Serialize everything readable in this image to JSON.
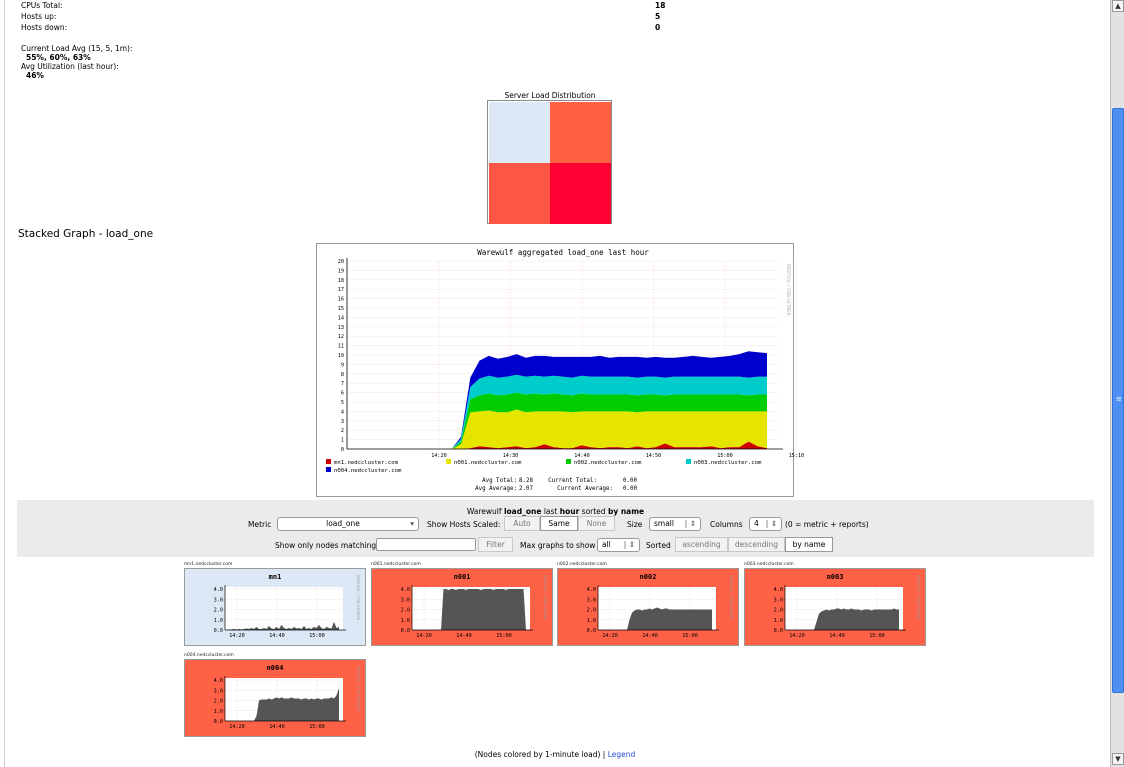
{
  "summary": {
    "cpus_total_label": "CPUs Total:",
    "cpus_total_value": "18",
    "hosts_up_label": "Hosts up:",
    "hosts_up_value": "5",
    "hosts_down_label": "Hosts down:",
    "hosts_down_value": "0",
    "load_avg_label": "Current Load Avg (15, 5, 1m):",
    "load_avg_value": "55%, 60%, 63%",
    "avg_util_label": "Avg Utilization (last hour):",
    "avg_util_value": "46%"
  },
  "distribution": {
    "title": "Server Load Distribution",
    "cells": [
      "#dce8f5",
      "#ff6040",
      "#ff5545",
      "#ff0033"
    ]
  },
  "stacked": {
    "heading": "Stacked Graph - load_one",
    "chart_data": {
      "type": "area",
      "title": "Warewulf aggregated load_one last hour",
      "x_ticks": [
        "14:20",
        "14:30",
        "14:40",
        "14:50",
        "15:00",
        "15:10"
      ],
      "ylim": [
        0,
        20
      ],
      "y_ticks": [
        0,
        1,
        2,
        3,
        4,
        5,
        6,
        7,
        8,
        9,
        10,
        11,
        12,
        13,
        14,
        15,
        16,
        17,
        18,
        19,
        20
      ],
      "series": [
        {
          "name": "mn1.nedccluster.com",
          "color": "#cc0000",
          "values": [
            0,
            0,
            0,
            0,
            0,
            0,
            0,
            0,
            0,
            0,
            0,
            0,
            0.1,
            0.3,
            0.2,
            0.1,
            0.2,
            0.3,
            0.1,
            0.2,
            0.5,
            0.2,
            0.1,
            0.1,
            0.4,
            0.2,
            0.1,
            0.2,
            0.2,
            0.1,
            0.3,
            0.1,
            0.2,
            0.6,
            0.2,
            0.2,
            0.2,
            0.2,
            0.3,
            0.1,
            0.2,
            0.2,
            0.8,
            0.3,
            0.1
          ]
        },
        {
          "name": "n001.nedccluster.com",
          "color": "#e5e500",
          "values": [
            0,
            0,
            0,
            0,
            0,
            0,
            0,
            0,
            0,
            0,
            0,
            0.5,
            3.8,
            3.7,
            3.9,
            3.8,
            3.7,
            3.9,
            3.8,
            3.8,
            3.5,
            3.8,
            3.9,
            3.8,
            3.6,
            3.8,
            3.9,
            3.8,
            3.8,
            3.9,
            3.6,
            3.9,
            3.8,
            3.4,
            3.8,
            3.8,
            3.8,
            3.8,
            3.7,
            3.9,
            3.8,
            3.8,
            3.2,
            3.7,
            3.9
          ]
        },
        {
          "name": "n002.nedccluster.com",
          "color": "#00cc00",
          "values": [
            0,
            0,
            0,
            0,
            0,
            0,
            0,
            0,
            0,
            0,
            0,
            0.3,
            1.4,
            1.7,
            1.8,
            1.8,
            1.9,
            1.8,
            1.9,
            1.9,
            1.8,
            1.9,
            1.8,
            1.8,
            1.9,
            1.8,
            1.8,
            1.8,
            1.8,
            1.8,
            1.8,
            1.8,
            1.8,
            1.7,
            1.8,
            1.8,
            1.8,
            1.8,
            1.8,
            1.8,
            1.8,
            1.8,
            1.7,
            1.8,
            1.8
          ]
        },
        {
          "name": "n003.nedccluster.com",
          "color": "#00cccc",
          "values": [
            0,
            0,
            0,
            0,
            0,
            0,
            0,
            0,
            0,
            0,
            0,
            0.3,
            1.3,
            1.8,
            1.9,
            1.9,
            1.9,
            1.9,
            1.9,
            1.9,
            1.9,
            1.9,
            1.9,
            1.9,
            1.9,
            1.9,
            1.9,
            1.9,
            1.9,
            1.9,
            1.9,
            1.9,
            1.9,
            1.9,
            1.9,
            1.9,
            1.9,
            1.9,
            1.9,
            1.9,
            1.9,
            1.9,
            1.9,
            1.9,
            1.9
          ]
        },
        {
          "name": "n004.nedccluster.com",
          "color": "#0000cc",
          "values": [
            0,
            0,
            0,
            0,
            0,
            0,
            0,
            0,
            0,
            0,
            0,
            0.2,
            1.0,
            1.9,
            2.1,
            2.0,
            2.1,
            2.2,
            2.0,
            2.1,
            2.2,
            2.0,
            2.1,
            2.2,
            2.0,
            2.1,
            2.2,
            2.0,
            2.1,
            2.1,
            2.2,
            2.0,
            2.1,
            2.1,
            2.0,
            2.1,
            2.2,
            2.1,
            2.0,
            2.1,
            2.2,
            2.4,
            2.8,
            2.6,
            2.5
          ]
        }
      ],
      "stats": {
        "avg_total_label": "Avg Total:",
        "avg_total": "8.28",
        "current_total_label": "Current Total:",
        "current_total": "0.00",
        "avg_average_label": "Avg Average:",
        "avg_average": "2.07",
        "current_average_label": "Current Average:",
        "current_average": "0.00"
      },
      "watermark": "RRDTOOL / TOBI OETIKER"
    }
  },
  "controls": {
    "caption_pre": "Warewulf",
    "caption_metric": "load_one",
    "caption_mid": "last",
    "caption_range": "hour",
    "caption_sorted": "sorted",
    "caption_by": "by name",
    "metric_label": "Metric",
    "metric_value": "load_one",
    "scaled_label": "Show Hosts Scaled:",
    "scaled_options": [
      "Auto",
      "Same",
      "None"
    ],
    "size_label": "Size",
    "size_value": "small",
    "columns_label": "Columns",
    "columns_value": "4",
    "columns_note": "(0 = metric + reports)",
    "filter_label": "Show only nodes matching",
    "filter_value": "",
    "filter_button": "Filter",
    "max_label": "Max graphs to show",
    "max_value": "all",
    "sorted_label": "Sorted",
    "sort_options": [
      "ascending",
      "descending",
      "by name"
    ]
  },
  "hosts": [
    {
      "fqdn": "mn1.nedccluster.com",
      "name": "mn1",
      "bg": "#dce8f5",
      "values": [
        0.05,
        0.05,
        0.1,
        0.05,
        0.1,
        0.05,
        0.1,
        0.15,
        0.1,
        0.2,
        0.1,
        0.3,
        0.1,
        0.1,
        0.2,
        0.1,
        0.4,
        0.15,
        0.1,
        0.3,
        0.1,
        0.5,
        0.2,
        0.1,
        0.2,
        0.1,
        0.3,
        0.15,
        0.2,
        0.1,
        0.4,
        0.1,
        0.2,
        0.1,
        0.3,
        0.2,
        0.5,
        0.2,
        0.1,
        0.3,
        0.2,
        0.15,
        0.8,
        0.2,
        0.3
      ]
    },
    {
      "fqdn": "n001.nedccluster.com",
      "name": "n001",
      "bg": "#ff6147",
      "values": [
        0,
        0,
        0,
        0,
        0,
        0,
        0,
        0,
        0,
        0,
        0,
        4.0,
        4.0,
        3.9,
        4.0,
        4.0,
        3.9,
        4.0,
        4.0,
        4.0,
        3.9,
        4.0,
        4.0,
        4.0,
        4.0,
        4.0,
        3.9,
        4.0,
        4.0,
        4.0,
        4.0,
        3.9,
        4.0,
        4.0,
        4.0,
        4.0,
        3.9,
        4.0,
        4.0,
        4.0,
        4.0,
        4.0,
        4.0,
        4.0,
        0
      ]
    },
    {
      "fqdn": "n002.nedccluster.com",
      "name": "n002",
      "bg": "#ff6147",
      "values": [
        0,
        0,
        0,
        0,
        0,
        0,
        0,
        0,
        0,
        0,
        0,
        1.0,
        1.7,
        1.9,
        2.0,
        2.0,
        1.9,
        2.0,
        2.0,
        2.1,
        2.0,
        2.1,
        2.2,
        2.1,
        2.0,
        2.1,
        2.1,
        2.0,
        2.0,
        2.0,
        2.0,
        2.0,
        2.0,
        2.0,
        2.0,
        2.0,
        2.0,
        2.0,
        2.0,
        2.0,
        2.0,
        2.0,
        2.0,
        2.0,
        2.0
      ]
    },
    {
      "fqdn": "n003.nedccluster.com",
      "name": "n003",
      "bg": "#ff6147",
      "values": [
        0,
        0,
        0,
        0,
        0,
        0,
        0,
        0,
        0,
        0,
        0,
        0.8,
        1.6,
        1.8,
        1.9,
        2.0,
        1.9,
        2.0,
        2.0,
        2.1,
        2.1,
        2.0,
        2.1,
        2.0,
        2.0,
        2.1,
        2.0,
        2.0,
        2.0,
        1.9,
        2.0,
        2.0,
        2.0,
        1.9,
        2.0,
        2.0,
        2.0,
        2.0,
        2.0,
        2.0,
        2.0,
        2.0,
        2.1,
        2.0,
        2.0
      ]
    },
    {
      "fqdn": "n004.nedccluster.com",
      "name": "n004",
      "bg": "#ff6147",
      "values": [
        0,
        0,
        0,
        0,
        0,
        0,
        0,
        0,
        0,
        0,
        0,
        0.5,
        2.0,
        2.1,
        2.1,
        2.1,
        2.2,
        2.1,
        2.2,
        2.3,
        2.2,
        2.3,
        2.2,
        2.2,
        2.2,
        2.3,
        2.2,
        2.2,
        2.2,
        2.1,
        2.2,
        2.2,
        2.1,
        2.2,
        2.1,
        2.2,
        2.2,
        2.1,
        2.2,
        2.2,
        2.2,
        2.3,
        2.2,
        2.5,
        3.2
      ]
    }
  ],
  "host_axis": {
    "y_ticks": [
      "0.0",
      "1.0",
      "2.0",
      "3.0",
      "4.0"
    ],
    "x_ticks": [
      "14:20",
      "14:40",
      "15:00"
    ],
    "ylim": [
      0,
      4
    ]
  },
  "footer": {
    "text": "(Nodes colored by 1-minute load) |",
    "legend_link": "Legend"
  },
  "scrollbar": {
    "up": "▲",
    "down": "▼",
    "grip": "≡"
  }
}
